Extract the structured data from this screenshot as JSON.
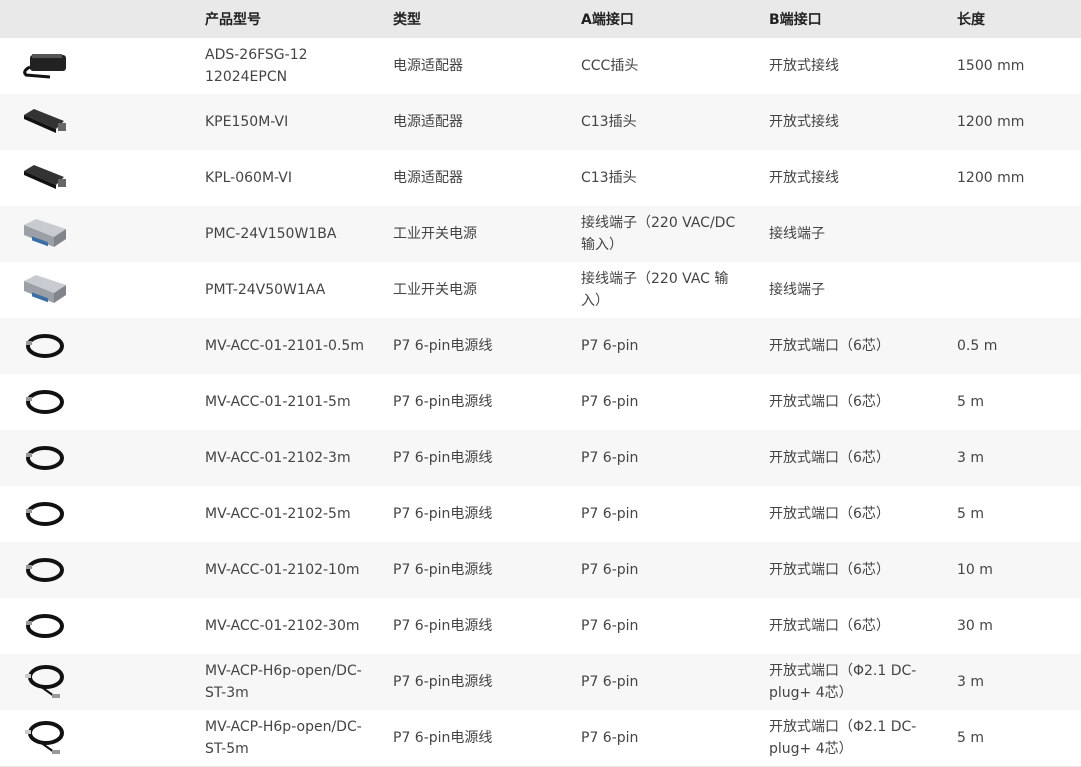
{
  "headers": [
    "",
    "产品型号",
    "类型",
    "A端接口",
    "B端接口",
    "长度"
  ],
  "rows": [
    {
      "icon": "adapter-black-icon",
      "model": "ADS-26FSG-12 12024EPCN",
      "type": "电源适配器",
      "a": "CCC插头",
      "b": "开放式接线",
      "length": "1500 mm"
    },
    {
      "icon": "adapter-brick-icon",
      "model": "KPE150M-VI",
      "type": "电源适配器",
      "a": "C13插头",
      "b": "开放式接线",
      "length": "1200 mm"
    },
    {
      "icon": "adapter-brick-icon",
      "model": "KPL-060M-VI",
      "type": "电源适配器",
      "a": "C13插头",
      "b": "开放式接线",
      "length": "1200 mm"
    },
    {
      "icon": "industrial-psu-icon",
      "model": "PMC-24V150W1BA",
      "type": "工业开关电源",
      "a": "接线端子（220 VAC/DC 输入）",
      "b": "接线端子",
      "length": ""
    },
    {
      "icon": "industrial-psu-icon",
      "model": "PMT-24V50W1AA",
      "type": "工业开关电源",
      "a": "接线端子（220 VAC 输入）",
      "b": "接线端子",
      "length": ""
    },
    {
      "icon": "cable-coil-icon",
      "model": "MV-ACC-01-2101-0.5m",
      "type": "P7 6-pin电源线",
      "a": "P7 6-pin",
      "b": "开放式端口（6芯）",
      "length": "0.5 m"
    },
    {
      "icon": "cable-coil-icon",
      "model": "MV-ACC-01-2101-5m",
      "type": "P7 6-pin电源线",
      "a": "P7 6-pin",
      "b": "开放式端口（6芯）",
      "length": "5 m"
    },
    {
      "icon": "cable-coil-icon",
      "model": "MV-ACC-01-2102-3m",
      "type": "P7 6-pin电源线",
      "a": "P7 6-pin",
      "b": "开放式端口（6芯）",
      "length": "3 m"
    },
    {
      "icon": "cable-coil-icon",
      "model": "MV-ACC-01-2102-5m",
      "type": "P7 6-pin电源线",
      "a": "P7 6-pin",
      "b": "开放式端口（6芯）",
      "length": "5 m"
    },
    {
      "icon": "cable-coil-icon",
      "model": "MV-ACC-01-2102-10m",
      "type": "P7 6-pin电源线",
      "a": "P7 6-pin",
      "b": "开放式端口（6芯）",
      "length": "10 m"
    },
    {
      "icon": "cable-coil-icon",
      "model": "MV-ACC-01-2102-30m",
      "type": "P7 6-pin电源线",
      "a": "P7 6-pin",
      "b": "开放式端口（6芯）",
      "length": "30 m"
    },
    {
      "icon": "cable-coil-dc-icon",
      "model": "MV-ACP-H6p-open/DC-ST-3m",
      "type": "P7 6-pin电源线",
      "a": "P7 6-pin",
      "b": "开放式端口（Φ2.1 DC-plug+ 4芯）",
      "length": "3 m"
    },
    {
      "icon": "cable-coil-dc-icon",
      "model": "MV-ACP-H6p-open/DC-ST-5m",
      "type": "P7 6-pin电源线",
      "a": "P7 6-pin",
      "b": "开放式端口（Φ2.1 DC-plug+ 4芯）",
      "length": "5 m"
    }
  ]
}
